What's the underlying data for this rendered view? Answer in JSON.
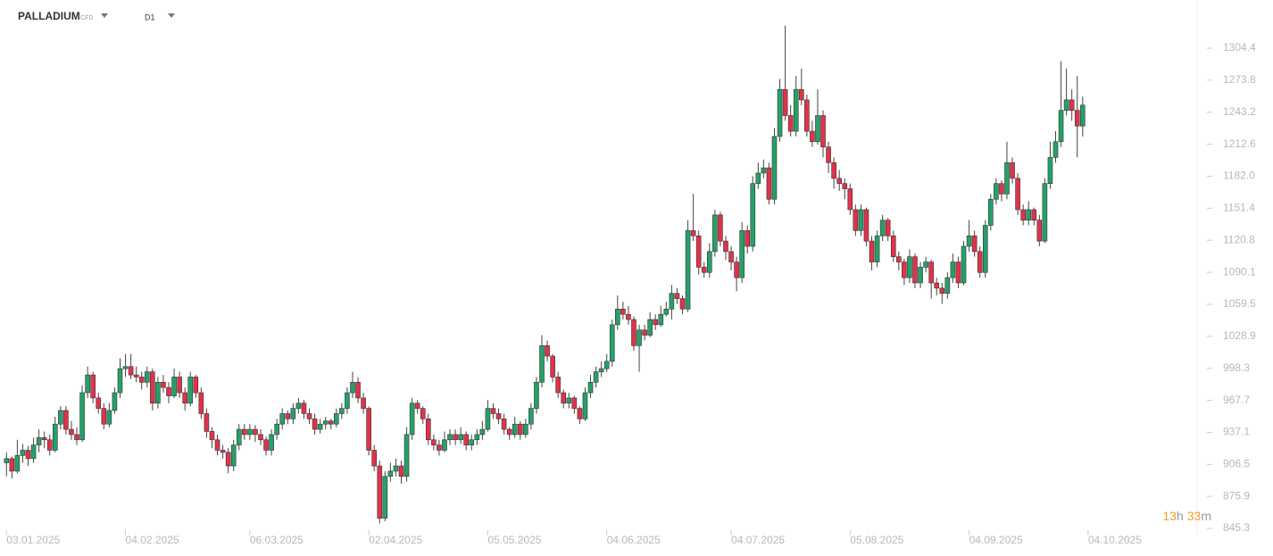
{
  "header": {
    "symbol": "PALLADIUM",
    "kind": "CFD",
    "timeframe": "D1"
  },
  "countdown": {
    "hours": "13",
    "hours_unit": "h",
    "minutes": "33",
    "minutes_unit": "m"
  },
  "chart_data": {
    "type": "candlestick",
    "up_color": "#26a06a",
    "down_color": "#e0334a",
    "xlim": [
      -1.2,
      220
    ],
    "ylim": [
      838.5,
      1350.5
    ],
    "xticks": [
      {
        "value": 0,
        "label": "03.01.2025"
      },
      {
        "value": 22,
        "label": "04.02.2025"
      },
      {
        "value": 45,
        "label": "06.03.2025"
      },
      {
        "value": 67,
        "label": "02.04.2025"
      },
      {
        "value": 89,
        "label": "05.05.2025"
      },
      {
        "value": 111,
        "label": "04.06.2025"
      },
      {
        "value": 134,
        "label": "04.07.2025"
      },
      {
        "value": 156,
        "label": "05.08.2025"
      },
      {
        "value": 178,
        "label": "04.09.2025"
      },
      {
        "value": 200,
        "label": "04.10.2025"
      }
    ],
    "yticks": [
      845.3,
      875.9,
      906.5,
      937.1,
      967.7,
      998.3,
      1028.9,
      1059.5,
      1090.1,
      1120.8,
      1151.4,
      {
        "value": 1182,
        "label": "1182.0"
      },
      1212.6,
      1243.2,
      1273.8,
      1304.4
    ],
    "ohlc": [
      [
        908,
        918,
        895,
        912
      ],
      [
        912,
        914,
        893,
        900
      ],
      [
        900,
        930,
        898,
        915
      ],
      [
        915,
        926,
        908,
        920
      ],
      [
        920,
        924,
        905,
        912
      ],
      [
        912,
        932,
        908,
        925
      ],
      [
        925,
        940,
        918,
        932
      ],
      [
        932,
        938,
        922,
        930
      ],
      [
        930,
        935,
        915,
        920
      ],
      [
        920,
        952,
        918,
        945
      ],
      [
        945,
        962,
        940,
        958
      ],
      [
        958,
        962,
        935,
        940
      ],
      [
        940,
        948,
        930,
        935
      ],
      [
        935,
        942,
        925,
        930
      ],
      [
        930,
        982,
        928,
        975
      ],
      [
        975,
        1000,
        970,
        992
      ],
      [
        992,
        995,
        965,
        970
      ],
      [
        970,
        975,
        955,
        960
      ],
      [
        960,
        965,
        940,
        945
      ],
      [
        945,
        965,
        942,
        958
      ],
      [
        958,
        980,
        955,
        975
      ],
      [
        975,
        1008,
        970,
        998
      ],
      [
        998,
        1012,
        990,
        1000
      ],
      [
        1000,
        1012,
        988,
        992
      ],
      [
        992,
        1000,
        985,
        990
      ],
      [
        990,
        995,
        978,
        985
      ],
      [
        985,
        1000,
        980,
        995
      ],
      [
        995,
        998,
        958,
        965
      ],
      [
        965,
        990,
        960,
        985
      ],
      [
        985,
        992,
        975,
        980
      ],
      [
        980,
        985,
        965,
        972
      ],
      [
        972,
        998,
        970,
        990
      ],
      [
        990,
        995,
        970,
        975
      ],
      [
        975,
        980,
        958,
        965
      ],
      [
        965,
        995,
        962,
        990
      ],
      [
        990,
        992,
        970,
        975
      ],
      [
        975,
        980,
        950,
        955
      ],
      [
        955,
        960,
        932,
        938
      ],
      [
        938,
        942,
        922,
        930
      ],
      [
        930,
        935,
        915,
        920
      ],
      [
        920,
        925,
        912,
        918
      ],
      [
        918,
        922,
        898,
        905
      ],
      [
        905,
        930,
        900,
        925
      ],
      [
        925,
        945,
        920,
        940
      ],
      [
        940,
        945,
        930,
        935
      ],
      [
        935,
        945,
        930,
        940
      ],
      [
        940,
        944,
        928,
        935
      ],
      [
        935,
        940,
        925,
        930
      ],
      [
        930,
        933,
        915,
        920
      ],
      [
        920,
        940,
        915,
        935
      ],
      [
        935,
        950,
        930,
        945
      ],
      [
        945,
        960,
        940,
        955
      ],
      [
        955,
        958,
        945,
        950
      ],
      [
        950,
        965,
        945,
        960
      ],
      [
        960,
        970,
        955,
        965
      ],
      [
        965,
        968,
        950,
        955
      ],
      [
        955,
        960,
        945,
        950
      ],
      [
        950,
        955,
        935,
        940
      ],
      [
        940,
        950,
        936,
        945
      ],
      [
        945,
        952,
        940,
        948
      ],
      [
        948,
        950,
        940,
        945
      ],
      [
        945,
        960,
        942,
        955
      ],
      [
        955,
        965,
        950,
        960
      ],
      [
        960,
        980,
        955,
        975
      ],
      [
        975,
        995,
        970,
        985
      ],
      [
        985,
        990,
        965,
        970
      ],
      [
        970,
        975,
        955,
        960
      ],
      [
        960,
        962,
        915,
        920
      ],
      [
        920,
        925,
        900,
        905
      ],
      [
        905,
        910,
        850,
        855
      ],
      [
        855,
        900,
        852,
        895
      ],
      [
        895,
        908,
        890,
        900
      ],
      [
        900,
        912,
        895,
        905
      ],
      [
        905,
        910,
        888,
        895
      ],
      [
        895,
        942,
        890,
        935
      ],
      [
        935,
        970,
        930,
        965
      ],
      [
        965,
        968,
        955,
        960
      ],
      [
        960,
        962,
        945,
        950
      ],
      [
        950,
        955,
        925,
        930
      ],
      [
        930,
        935,
        920,
        925
      ],
      [
        925,
        930,
        915,
        920
      ],
      [
        920,
        938,
        918,
        930
      ],
      [
        930,
        940,
        925,
        935
      ],
      [
        935,
        940,
        925,
        930
      ],
      [
        930,
        942,
        926,
        935
      ],
      [
        935,
        938,
        920,
        925
      ],
      [
        925,
        935,
        920,
        930
      ],
      [
        930,
        940,
        925,
        935
      ],
      [
        935,
        948,
        930,
        940
      ],
      [
        940,
        968,
        938,
        960
      ],
      [
        960,
        965,
        950,
        955
      ],
      [
        955,
        960,
        945,
        950
      ],
      [
        950,
        955,
        935,
        940
      ],
      [
        940,
        942,
        930,
        935
      ],
      [
        935,
        952,
        932,
        945
      ],
      [
        945,
        948,
        930,
        935
      ],
      [
        935,
        950,
        932,
        945
      ],
      [
        945,
        965,
        940,
        960
      ],
      [
        960,
        990,
        955,
        985
      ],
      [
        985,
        1030,
        980,
        1020
      ],
      [
        1020,
        1025,
        1005,
        1010
      ],
      [
        1010,
        1012,
        985,
        990
      ],
      [
        990,
        995,
        970,
        975
      ],
      [
        975,
        978,
        960,
        965
      ],
      [
        965,
        975,
        960,
        970
      ],
      [
        970,
        972,
        955,
        960
      ],
      [
        960,
        962,
        945,
        950
      ],
      [
        950,
        980,
        948,
        975
      ],
      [
        975,
        992,
        970,
        985
      ],
      [
        985,
        1000,
        980,
        995
      ],
      [
        995,
        1005,
        990,
        998
      ],
      [
        998,
        1012,
        995,
        1005
      ],
      [
        1005,
        1045,
        1000,
        1040
      ],
      [
        1040,
        1068,
        1035,
        1055
      ],
      [
        1055,
        1062,
        1045,
        1050
      ],
      [
        1050,
        1058,
        1040,
        1045
      ],
      [
        1045,
        1048,
        1015,
        1020
      ],
      [
        1020,
        1040,
        995,
        1035
      ],
      [
        1035,
        1040,
        1025,
        1030
      ],
      [
        1030,
        1052,
        1028,
        1045
      ],
      [
        1045,
        1050,
        1035,
        1040
      ],
      [
        1040,
        1058,
        1038,
        1050
      ],
      [
        1050,
        1062,
        1048,
        1055
      ],
      [
        1055,
        1078,
        1045,
        1070
      ],
      [
        1070,
        1075,
        1060,
        1065
      ],
      [
        1065,
        1068,
        1050,
        1055
      ],
      [
        1055,
        1140,
        1052,
        1130
      ],
      [
        1130,
        1165,
        1120,
        1125
      ],
      [
        1125,
        1130,
        1088,
        1095
      ],
      [
        1095,
        1100,
        1085,
        1090
      ],
      [
        1090,
        1118,
        1085,
        1110
      ],
      [
        1110,
        1150,
        1105,
        1145
      ],
      [
        1145,
        1148,
        1115,
        1120
      ],
      [
        1120,
        1125,
        1102,
        1110
      ],
      [
        1110,
        1115,
        1092,
        1100
      ],
      [
        1100,
        1105,
        1072,
        1085
      ],
      [
        1085,
        1138,
        1080,
        1130
      ],
      [
        1130,
        1135,
        1108,
        1115
      ],
      [
        1115,
        1182,
        1110,
        1175
      ],
      [
        1175,
        1195,
        1170,
        1185
      ],
      [
        1185,
        1198,
        1180,
        1190
      ],
      [
        1190,
        1195,
        1155,
        1160
      ],
      [
        1160,
        1228,
        1155,
        1220
      ],
      [
        1220,
        1275,
        1215,
        1265
      ],
      [
        1265,
        1326,
        1235,
        1240
      ],
      [
        1240,
        1250,
        1220,
        1225
      ],
      [
        1225,
        1278,
        1220,
        1265
      ],
      [
        1265,
        1285,
        1250,
        1255
      ],
      [
        1255,
        1260,
        1220,
        1225
      ],
      [
        1225,
        1235,
        1210,
        1215
      ],
      [
        1215,
        1265,
        1212,
        1240
      ],
      [
        1240,
        1245,
        1200,
        1210
      ],
      [
        1210,
        1215,
        1185,
        1195
      ],
      [
        1195,
        1200,
        1170,
        1180
      ],
      [
        1180,
        1188,
        1168,
        1175
      ],
      [
        1175,
        1180,
        1160,
        1170
      ],
      [
        1170,
        1175,
        1145,
        1150
      ],
      [
        1150,
        1155,
        1125,
        1130
      ],
      [
        1130,
        1155,
        1125,
        1150
      ],
      [
        1150,
        1152,
        1115,
        1120
      ],
      [
        1120,
        1125,
        1092,
        1100
      ],
      [
        1100,
        1130,
        1095,
        1125
      ],
      [
        1125,
        1145,
        1120,
        1140
      ],
      [
        1140,
        1142,
        1120,
        1125
      ],
      [
        1125,
        1130,
        1100,
        1105
      ],
      [
        1105,
        1110,
        1092,
        1100
      ],
      [
        1100,
        1103,
        1078,
        1085
      ],
      [
        1085,
        1112,
        1080,
        1105
      ],
      [
        1105,
        1108,
        1075,
        1080
      ],
      [
        1080,
        1100,
        1075,
        1095
      ],
      [
        1095,
        1105,
        1090,
        1100
      ],
      [
        1100,
        1102,
        1065,
        1080
      ],
      [
        1080,
        1085,
        1068,
        1075
      ],
      [
        1075,
        1080,
        1060,
        1070
      ],
      [
        1070,
        1090,
        1065,
        1085
      ],
      [
        1085,
        1108,
        1080,
        1100
      ],
      [
        1100,
        1105,
        1075,
        1080
      ],
      [
        1080,
        1120,
        1078,
        1115
      ],
      [
        1115,
        1140,
        1110,
        1125
      ],
      [
        1125,
        1130,
        1105,
        1110
      ],
      [
        1110,
        1115,
        1085,
        1090
      ],
      [
        1090,
        1140,
        1085,
        1135
      ],
      [
        1135,
        1165,
        1130,
        1160
      ],
      [
        1160,
        1180,
        1155,
        1175
      ],
      [
        1175,
        1178,
        1158,
        1165
      ],
      [
        1165,
        1215,
        1160,
        1195
      ],
      [
        1195,
        1200,
        1175,
        1180
      ],
      [
        1180,
        1185,
        1145,
        1150
      ],
      [
        1150,
        1155,
        1135,
        1140
      ],
      [
        1140,
        1158,
        1135,
        1150
      ],
      [
        1150,
        1152,
        1135,
        1140
      ],
      [
        1140,
        1145,
        1115,
        1120
      ],
      [
        1120,
        1180,
        1118,
        1175
      ],
      [
        1175,
        1215,
        1170,
        1200
      ],
      [
        1200,
        1225,
        1195,
        1215
      ],
      [
        1215,
        1292,
        1210,
        1245
      ],
      [
        1245,
        1285,
        1240,
        1255
      ],
      [
        1255,
        1265,
        1235,
        1245
      ],
      [
        1245,
        1278,
        1200,
        1230
      ],
      [
        1230,
        1258,
        1220,
        1250
      ]
    ]
  }
}
